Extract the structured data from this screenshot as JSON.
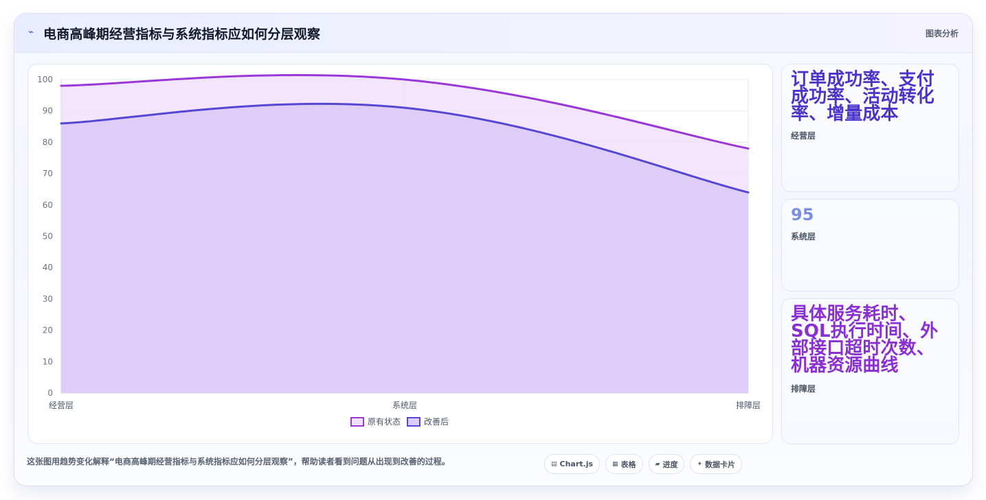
{
  "header": {
    "icon": "trend-icon",
    "title": "电商高峰期经营指标与系统指标应如何分层观察",
    "right_text": "图表分析"
  },
  "chart_data": {
    "type": "area",
    "categories": [
      "经营层",
      "系统层",
      "排障层"
    ],
    "series": [
      {
        "name": "原有状态",
        "values": [
          98,
          100,
          78
        ],
        "color": "#9a37d7",
        "fill": "#f0e1fb"
      },
      {
        "name": "改善后",
        "values": [
          86,
          91,
          64
        ],
        "color": "#5646d4",
        "fill": "#dcccf7"
      }
    ],
    "ylim": [
      0,
      100
    ],
    "yticks": [
      0,
      10,
      20,
      30,
      40,
      50,
      60,
      70,
      80,
      90,
      100
    ],
    "grid": true,
    "legend_position": "bottom"
  },
  "cards": [
    {
      "value": "订单成功率、支付成功率、活动转化率、增量成本",
      "label": "经营层",
      "color": "#4a35c9"
    },
    {
      "value": "95",
      "label": "系统层",
      "color": "#7a8ee1"
    },
    {
      "value": "具体服务耗时、SQL执行时间、外部接口超时次数、机器资源曲线",
      "label": "排障层",
      "color": "#8a2fd1"
    }
  ],
  "note": "这张图用趋势变化解释“电商高峰期经营指标与系统指标应如何分层观察”，帮助读者看到问题从出现到改善的过程。",
  "badges": [
    {
      "icon": "chart-icon",
      "icon_glyph": "▤",
      "label": "Chart.js"
    },
    {
      "icon": "table-icon",
      "icon_glyph": "▦",
      "label": "表格"
    },
    {
      "icon": "progress-icon",
      "icon_glyph": "▰",
      "label": "进度"
    },
    {
      "icon": "card-icon",
      "icon_glyph": "✦",
      "label": "数据卡片"
    }
  ]
}
